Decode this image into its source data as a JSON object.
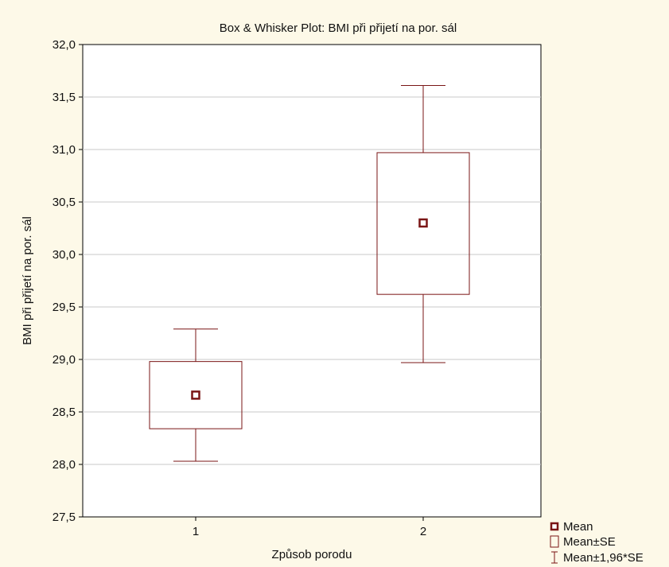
{
  "chart_data": {
    "type": "box",
    "title": "Box & Whisker Plot: BMI při přijetí na por. sál",
    "xlabel": "Způsob porodu",
    "ylabel": "BMI při přijetí na por. sál",
    "categories": [
      "1",
      "2"
    ],
    "ylim": [
      27.5,
      32.0
    ],
    "yticks": [
      27.5,
      28.0,
      28.5,
      29.0,
      29.5,
      30.0,
      30.5,
      31.0,
      31.5,
      32.0
    ],
    "ytick_labels": [
      "27,5",
      "28,0",
      "28,5",
      "29,0",
      "29,5",
      "30,0",
      "30,5",
      "31,0",
      "31,5",
      "32,0"
    ],
    "grid": true,
    "legend_position": "bottom-right",
    "legend": [
      {
        "symbol": "mean-marker",
        "label": "Mean"
      },
      {
        "symbol": "box",
        "label": "Mean±SE"
      },
      {
        "symbol": "whisker",
        "label": "Mean±1,96*SE"
      }
    ],
    "boxes": [
      {
        "category": "1",
        "mean": 28.66,
        "se_low": 28.34,
        "se_high": 28.98,
        "ci_low": 28.03,
        "ci_high": 29.29
      },
      {
        "category": "2",
        "mean": 30.3,
        "se_low": 29.62,
        "se_high": 30.97,
        "ci_low": 28.97,
        "ci_high": 31.61
      }
    ],
    "colors": {
      "series": "#7a1515",
      "background": "#fdf9e8",
      "plot_area": "#ffffff",
      "grid": "#c8c8c8",
      "axis": "#000000"
    }
  }
}
